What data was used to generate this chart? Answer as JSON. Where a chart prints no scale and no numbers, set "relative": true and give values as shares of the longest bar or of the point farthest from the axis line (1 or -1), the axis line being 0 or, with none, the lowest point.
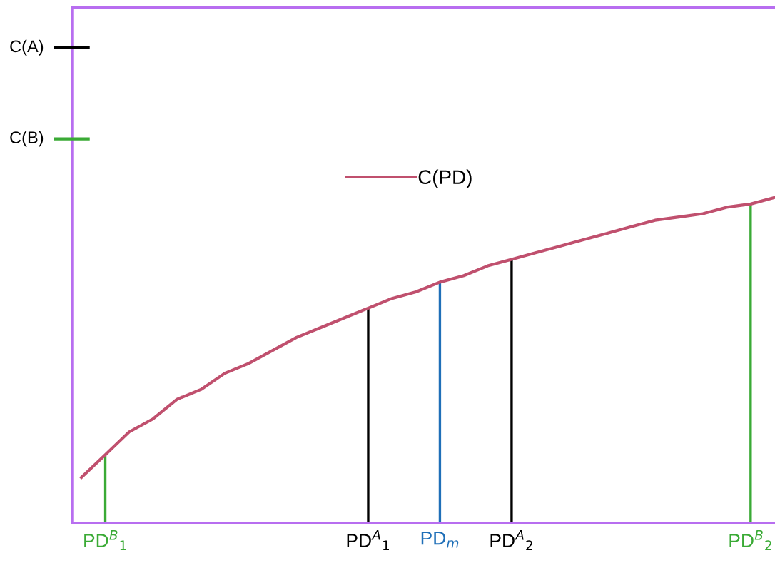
{
  "chart_data": {
    "type": "line",
    "relative": true,
    "categories": [
      null,
      "PD$^{B}$$_{1}$",
      null,
      null,
      null,
      null,
      null,
      null,
      null,
      null,
      null,
      null,
      "PD$^{A}$$_{1}$",
      null,
      null,
      "PD$_{m}$",
      null,
      null,
      "PD$^{A}$$_{2}$",
      null,
      null,
      null,
      null,
      null,
      null,
      null,
      null,
      null,
      "PD$^{B}$$_{2}$",
      null
    ],
    "series": [
      {
        "name": "C(PD)",
        "color": "#c0506e",
        "values": [
          0.14,
          0.21,
          0.28,
          0.32,
          0.38,
          0.41,
          0.46,
          0.49,
          0.53,
          0.57,
          0.6,
          0.63,
          0.66,
          0.69,
          0.71,
          0.74,
          0.76,
          0.79,
          0.81,
          0.83,
          0.85,
          0.87,
          0.89,
          0.91,
          0.93,
          0.94,
          0.95,
          0.97,
          0.98,
          1.0
        ]
      },
      {
        "type": "bar",
        "colors": [
          null,
          "#3aaa35",
          null,
          null,
          null,
          null,
          null,
          null,
          null,
          null,
          null,
          null,
          "#000000",
          null,
          null,
          "#1f6fb8",
          null,
          null,
          "#000000",
          null,
          null,
          null,
          null,
          null,
          null,
          null,
          null,
          null,
          "#3aaa35",
          null
        ],
        "values": [
          null,
          0.21,
          null,
          null,
          null,
          null,
          null,
          null,
          null,
          null,
          null,
          null,
          0.66,
          null,
          null,
          0.74,
          null,
          null,
          0.81,
          null,
          null,
          null,
          null,
          null,
          null,
          null,
          null,
          null,
          0.98,
          null
        ]
      }
    ],
    "ref_lines": [
      {
        "axis": "y",
        "value": 1.46,
        "label": "C(A)",
        "color": "#000000"
      },
      {
        "axis": "y",
        "value": 1.18,
        "label": "C(B)",
        "color": "#3aaa35"
      }
    ],
    "legend": "top",
    "grid": false
  }
}
